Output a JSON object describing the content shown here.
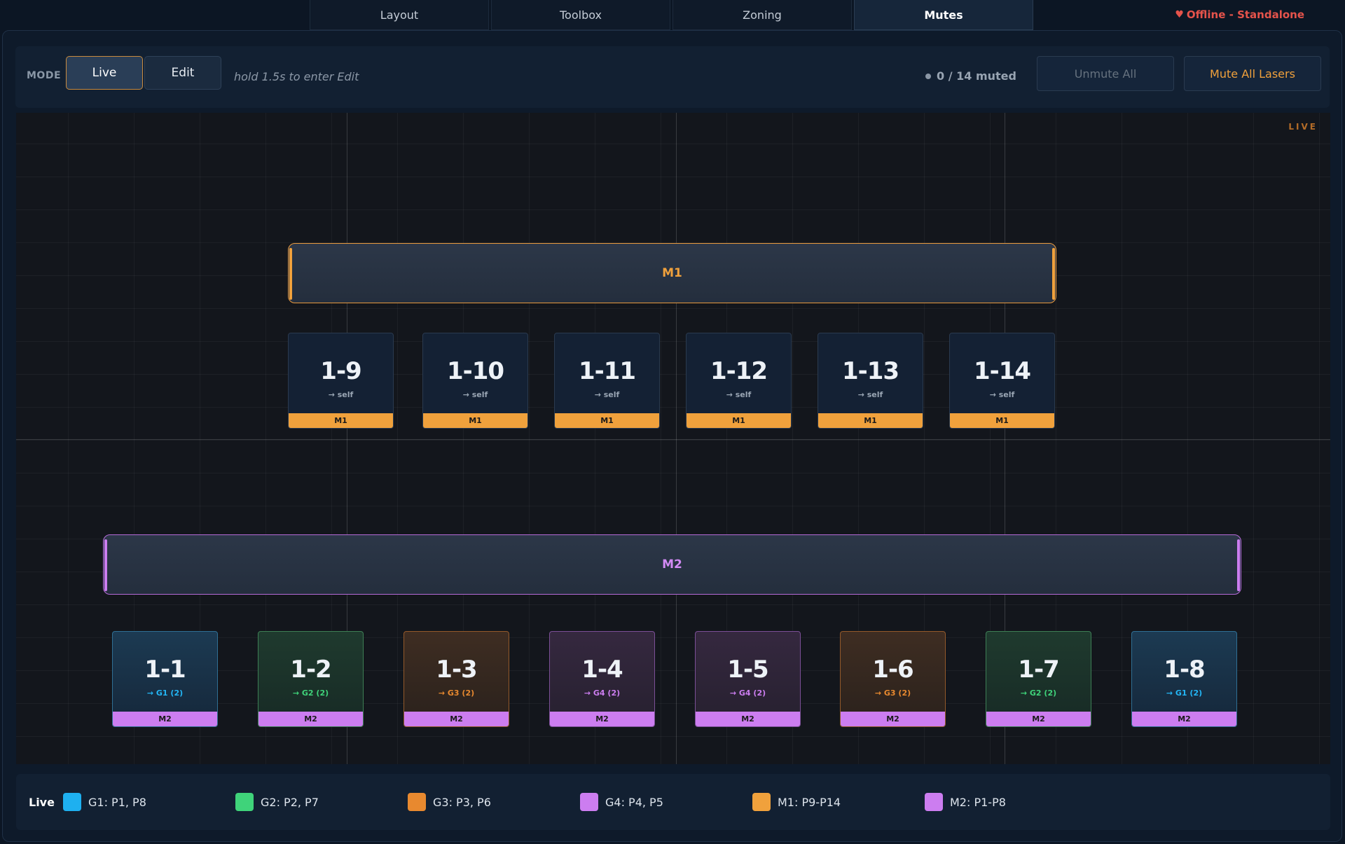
{
  "tabs": [
    {
      "label": "Layout",
      "active": false
    },
    {
      "label": "Toolbox",
      "active": false
    },
    {
      "label": "Zoning",
      "active": false
    },
    {
      "label": "Mutes",
      "active": true
    }
  ],
  "status": {
    "icon": "heart-icon",
    "text": "Offline - Standalone",
    "color": "#e5534b"
  },
  "modebar": {
    "label": "MODE",
    "live_label": "Live",
    "edit_label": "Edit",
    "hint": "hold 1.5s to enter Edit",
    "muted_text": "0 / 14 muted",
    "unmute_all_label": "Unmute All",
    "mute_all_label": "Mute All Lasers"
  },
  "canvas": {
    "live_tag": "LIVE",
    "groups": [
      {
        "label": "M1",
        "color": "#f0a13c"
      },
      {
        "label": "M2",
        "color": "#cc7df0"
      }
    ],
    "projectors_m1": [
      {
        "name": "1-9",
        "target": "→ self",
        "group": "M1"
      },
      {
        "name": "1-10",
        "target": "→ self",
        "group": "M1"
      },
      {
        "name": "1-11",
        "target": "→ self",
        "group": "M1"
      },
      {
        "name": "1-12",
        "target": "→ self",
        "group": "M1"
      },
      {
        "name": "1-13",
        "target": "→ self",
        "group": "M1"
      },
      {
        "name": "1-14",
        "target": "→ self",
        "group": "M1"
      }
    ],
    "projectors_m2": [
      {
        "name": "1-1",
        "target": "→ G1 (2)",
        "group": "M2"
      },
      {
        "name": "1-2",
        "target": "→ G2 (2)",
        "group": "M2"
      },
      {
        "name": "1-3",
        "target": "→ G3 (2)",
        "group": "M2"
      },
      {
        "name": "1-4",
        "target": "→ G4 (2)",
        "group": "M2"
      },
      {
        "name": "1-5",
        "target": "→ G4 (2)",
        "group": "M2"
      },
      {
        "name": "1-6",
        "target": "→ G3 (2)",
        "group": "M2"
      },
      {
        "name": "1-7",
        "target": "→ G2 (2)",
        "group": "M2"
      },
      {
        "name": "1-8",
        "target": "→ G1 (2)",
        "group": "M2"
      }
    ]
  },
  "legend": {
    "mode": "Live",
    "items": [
      {
        "label": "G1: P1, P8",
        "color": "#1eb0f0"
      },
      {
        "label": "G2: P2, P7",
        "color": "#3fd37a"
      },
      {
        "label": "G3: P3, P6",
        "color": "#e8892f"
      },
      {
        "label": "G4: P4, P5",
        "color": "#cc7df0"
      },
      {
        "label": "M1: P9-P14",
        "color": "#f0a13c"
      },
      {
        "label": "M2: P1-P8",
        "color": "#cc7df0"
      }
    ]
  }
}
